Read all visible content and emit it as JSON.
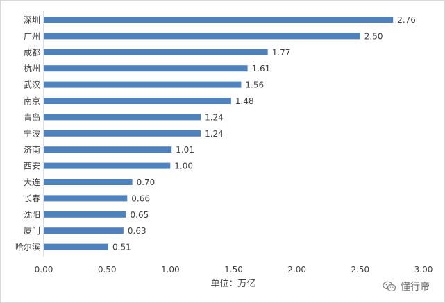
{
  "chart_data": {
    "type": "bar",
    "orientation": "horizontal",
    "categories": [
      "深圳",
      "广州",
      "成都",
      "杭州",
      "武汉",
      "南京",
      "青岛",
      "宁波",
      "济南",
      "西安",
      "大连",
      "长春",
      "沈阳",
      "厦门",
      "哈尔滨"
    ],
    "values": [
      2.76,
      2.5,
      1.77,
      1.61,
      1.56,
      1.48,
      1.24,
      1.24,
      1.01,
      1.0,
      0.7,
      0.66,
      0.65,
      0.63,
      0.51
    ],
    "value_labels": [
      "2.76",
      "2.50",
      "1.77",
      "1.61",
      "1.56",
      "1.48",
      "1.24",
      "1.24",
      "1.01",
      "1.00",
      "0.70",
      "0.66",
      "0.65",
      "0.63",
      "0.51"
    ],
    "xlim": [
      0,
      3.0
    ],
    "x_ticks": [
      "0.00",
      "0.50",
      "1.00",
      "1.50",
      "2.00",
      "2.50",
      "3.00"
    ],
    "xlabel": "单位：万亿",
    "ylabel": "",
    "title": "",
    "grid": false,
    "legend": "none",
    "bar_color": "#4f81bd"
  },
  "watermark": {
    "text": "懂行帝",
    "icon": "wechat-icon"
  }
}
